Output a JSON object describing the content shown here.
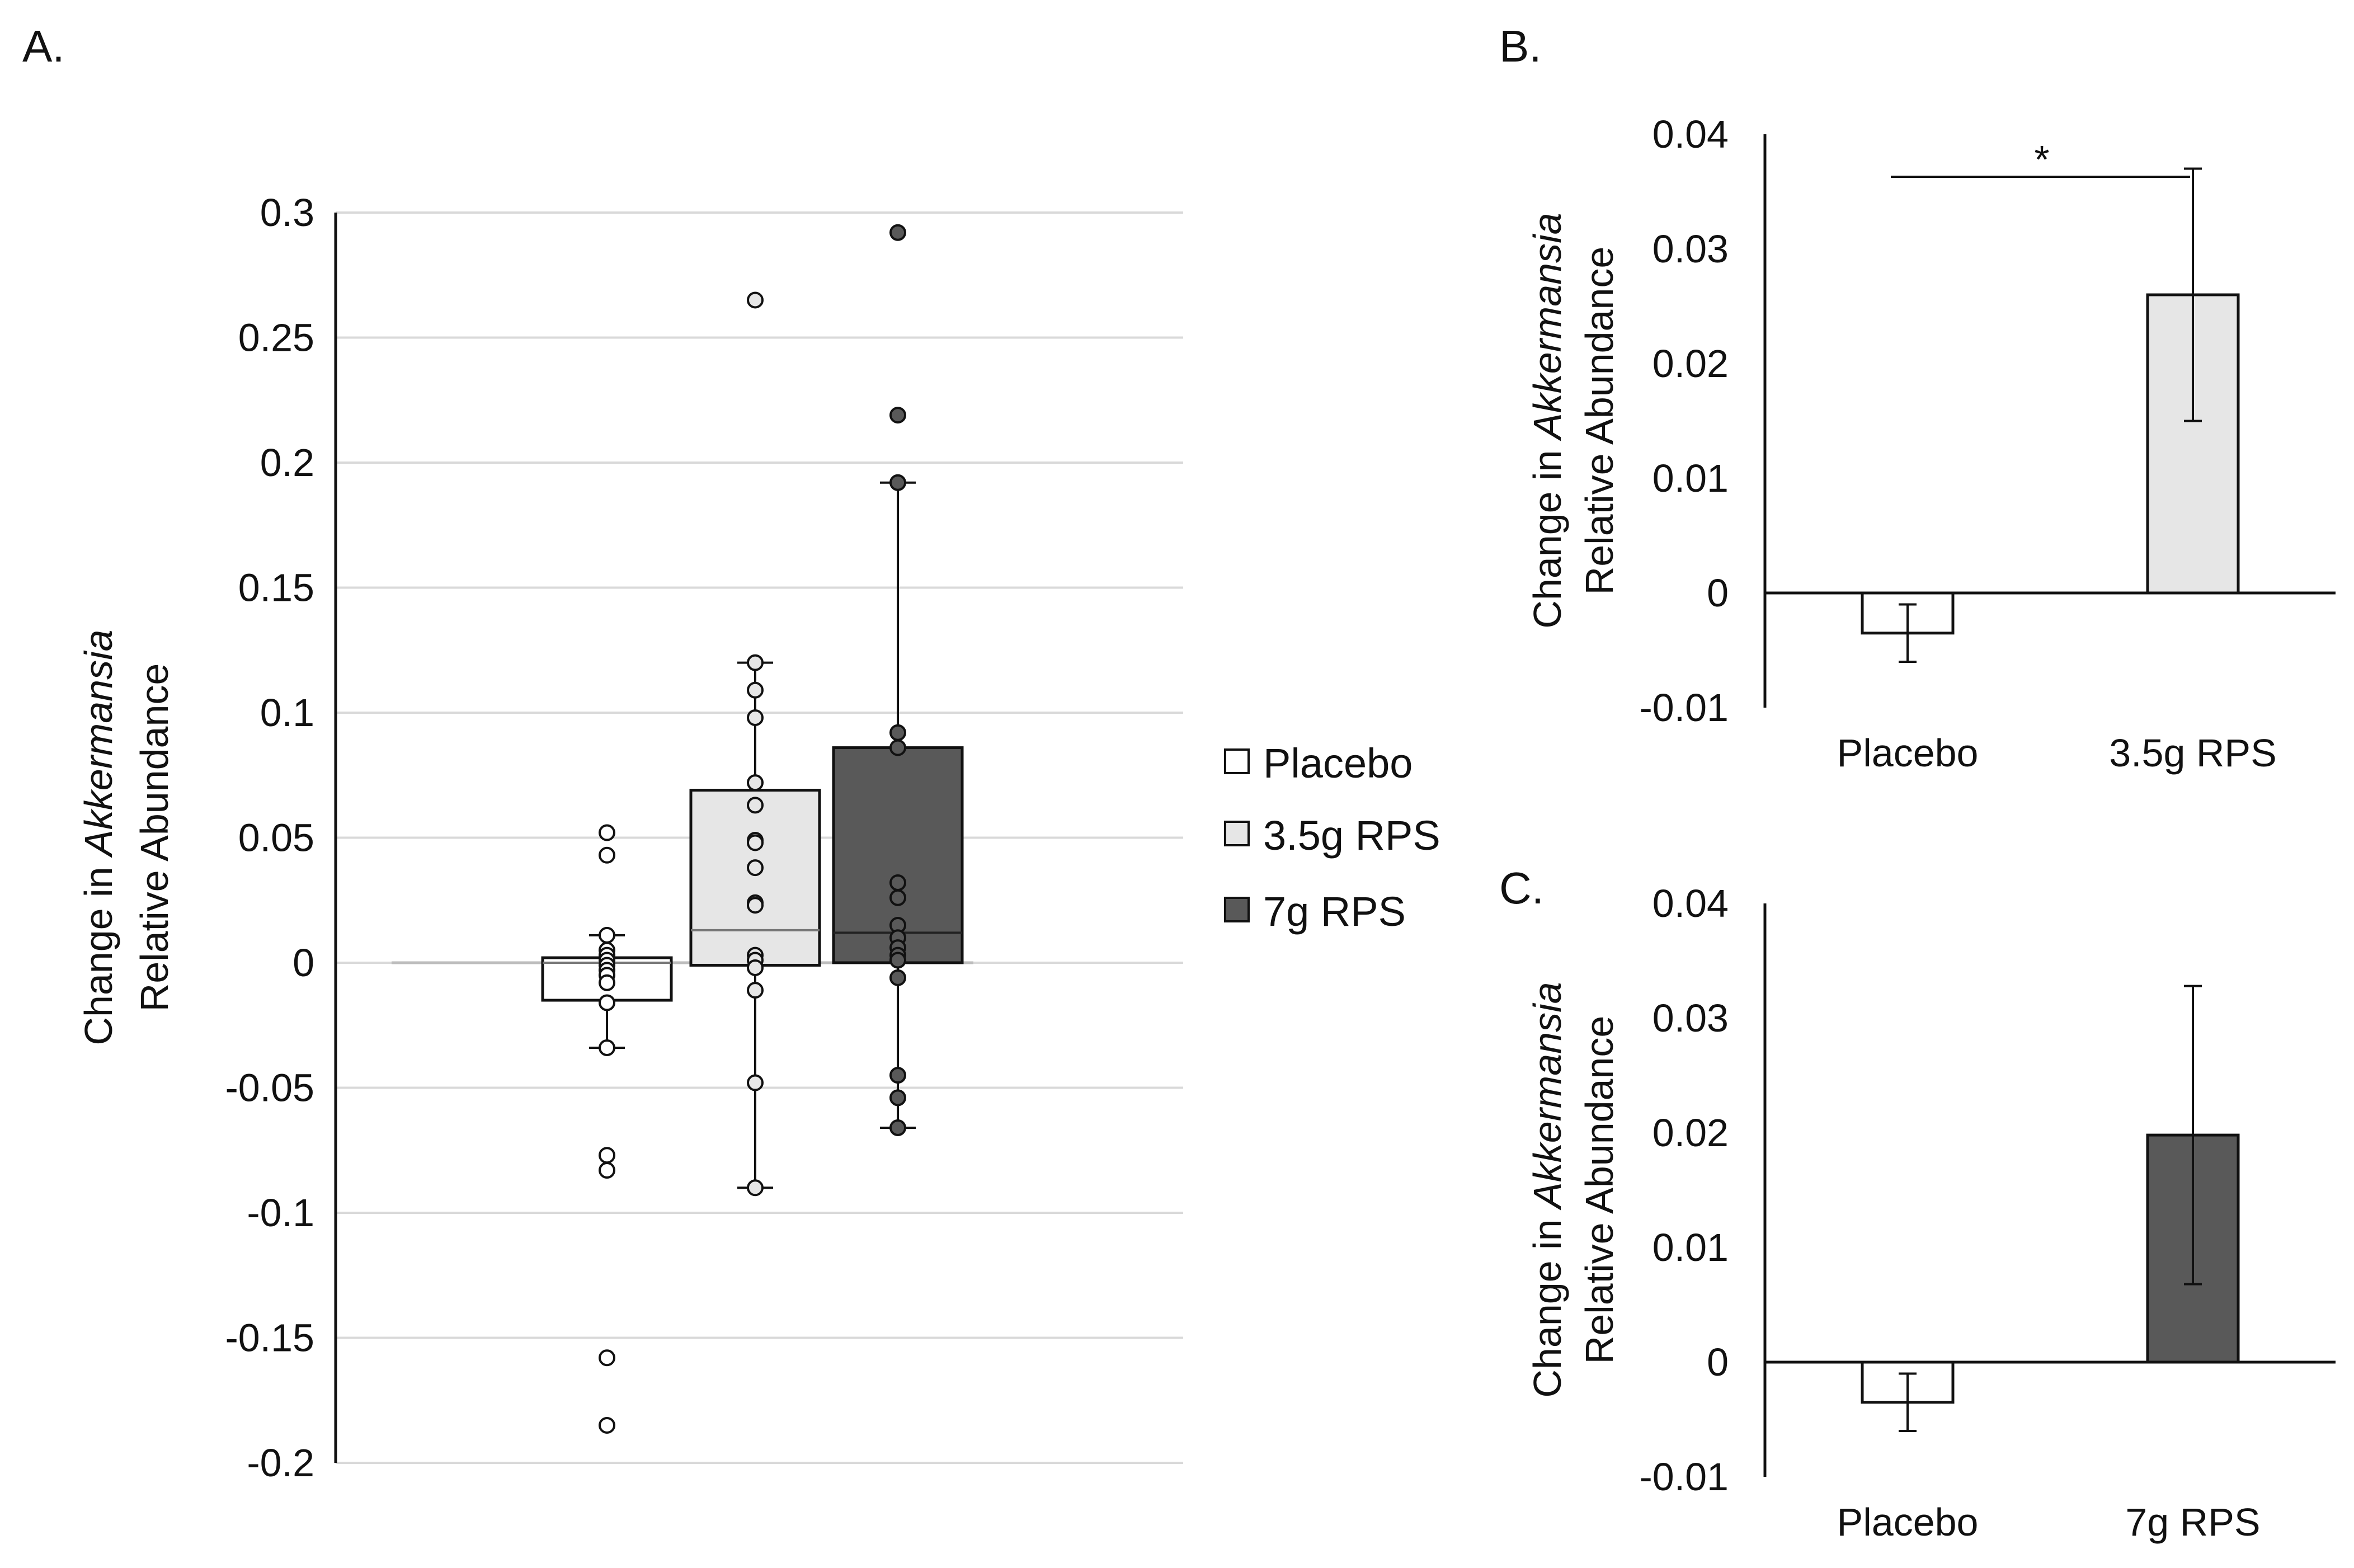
{
  "colors": {
    "placebo": "#ffffff",
    "rps35": "#e6e6e6",
    "rps7": "#595959",
    "outline": "#111111",
    "grid": "#d9d9d9"
  },
  "panel_labels": {
    "a": "A.",
    "b": "B.",
    "c": "C."
  },
  "y_title": {
    "prefix": "Change in ",
    "italic": "Akkermansia",
    "line2": "Relative Abundance"
  },
  "legend": [
    {
      "label": "Placebo",
      "color": "#ffffff"
    },
    {
      "label": "3.5g RPS",
      "color": "#e6e6e6"
    },
    {
      "label": "7g RPS",
      "color": "#595959"
    }
  ],
  "chart_data": [
    {
      "panel": "A",
      "type": "box",
      "ylabel": "Change in Akkermansia Relative Abundance",
      "ylim": [
        -0.2,
        0.3
      ],
      "yticks": [
        0.3,
        0.25,
        0.2,
        0.15,
        0.1,
        0.05,
        0,
        -0.05,
        -0.1,
        -0.15,
        -0.2
      ],
      "ytick_labels": [
        "0.3",
        "0.25",
        "0.2",
        "0.15",
        "0.1",
        "0.05",
        "0",
        "-0.05",
        "-0.1",
        "-0.15",
        "-0.2"
      ],
      "grid": true,
      "legend_position": "right",
      "series": [
        {
          "name": "Placebo",
          "color": "#ffffff",
          "q1": -0.015,
          "median": 0.0,
          "q3": 0.002,
          "whisker_low": -0.034,
          "whisker_high": 0.011,
          "points": [
            0.052,
            0.043,
            0.011,
            0.005,
            0.003,
            0.001,
            -0.001,
            -0.003,
            -0.005,
            -0.008,
            -0.016,
            -0.034,
            -0.077,
            -0.083,
            -0.158,
            -0.185
          ]
        },
        {
          "name": "3.5g RPS",
          "color": "#e6e6e6",
          "q1": -0.001,
          "median": 0.013,
          "q3": 0.069,
          "whisker_low": -0.09,
          "whisker_high": 0.12,
          "points": [
            0.265,
            0.12,
            0.109,
            0.098,
            0.072,
            0.063,
            0.049,
            0.048,
            0.038,
            0.024,
            0.023,
            0.003,
            0.001,
            -0.002,
            -0.011,
            -0.048,
            -0.09
          ]
        },
        {
          "name": "7g RPS",
          "color": "#595959",
          "q1": 0.0,
          "median": 0.012,
          "q3": 0.086,
          "whisker_low": -0.066,
          "whisker_high": 0.192,
          "points": [
            0.292,
            0.219,
            0.192,
            0.092,
            0.086,
            0.032,
            0.026,
            0.015,
            0.01,
            0.006,
            0.003,
            0.001,
            -0.006,
            -0.045,
            -0.054,
            -0.066
          ]
        }
      ]
    },
    {
      "panel": "B",
      "type": "bar",
      "ylabel": "Change in Akkermansia Relative Abundance",
      "ylim": [
        -0.01,
        0.04
      ],
      "yticks": [
        0.04,
        0.03,
        0.02,
        0.01,
        0,
        -0.01
      ],
      "ytick_labels": [
        "0.04",
        "0.03",
        "0.02",
        "0.01",
        "0",
        "-0.01"
      ],
      "categories": [
        "Placebo",
        "3.5g RPS"
      ],
      "values": [
        -0.0035,
        0.026
      ],
      "errors": [
        0.0025,
        0.011
      ],
      "colors": [
        "#ffffff",
        "#e6e6e6"
      ],
      "significance": {
        "between": [
          0,
          1
        ],
        "label": "*",
        "y": 0.038
      }
    },
    {
      "panel": "C",
      "type": "bar",
      "ylabel": "Change in Akkermansia Relative Abundance",
      "ylim": [
        -0.01,
        0.04
      ],
      "yticks": [
        0.04,
        0.03,
        0.02,
        0.01,
        0,
        -0.01
      ],
      "ytick_labels": [
        "0.04",
        "0.03",
        "0.02",
        "0.01",
        "0",
        "-0.01"
      ],
      "categories": [
        "Placebo",
        "7g RPS"
      ],
      "values": [
        -0.0035,
        0.0198
      ],
      "errors": [
        0.0025,
        0.013
      ],
      "colors": [
        "#ffffff",
        "#595959"
      ]
    }
  ]
}
